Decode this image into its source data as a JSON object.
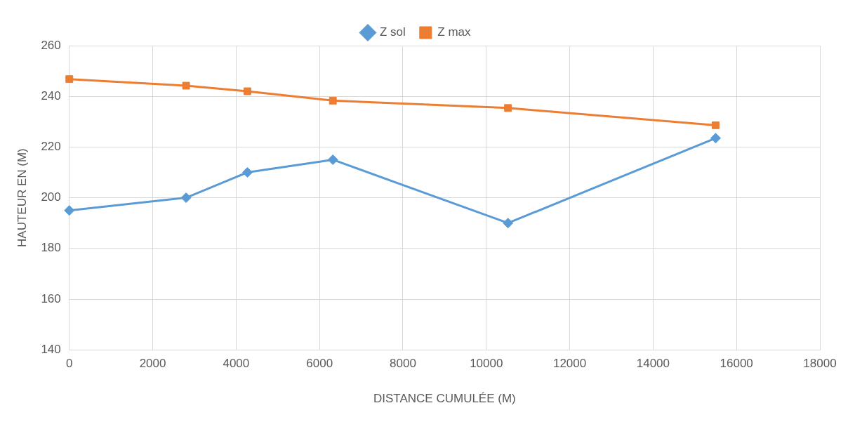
{
  "chart_data": {
    "type": "line",
    "xlabel": "DISTANCE CUMULÉE (M)",
    "ylabel": "HAUTEUR EN (M)",
    "x": [
      0,
      2800,
      4270,
      6320,
      10520,
      15500
    ],
    "series": [
      {
        "name": "Z sol",
        "color": "#5b9bd5",
        "marker": "diamond",
        "values": [
          195,
          200,
          210,
          215,
          190,
          223.5
        ]
      },
      {
        "name": "Z max",
        "color": "#ed7d31",
        "marker": "square",
        "values": [
          246.8,
          244.2,
          242,
          238.3,
          235.4,
          228.6
        ]
      }
    ],
    "xlim": [
      0,
      18000
    ],
    "xticks": [
      0,
      2000,
      4000,
      6000,
      8000,
      10000,
      12000,
      14000,
      16000,
      18000
    ],
    "ylim": [
      140,
      260
    ],
    "yticks": [
      140,
      160,
      180,
      200,
      220,
      240,
      260
    ],
    "grid": true,
    "legend": "top",
    "line_style": "solid"
  }
}
